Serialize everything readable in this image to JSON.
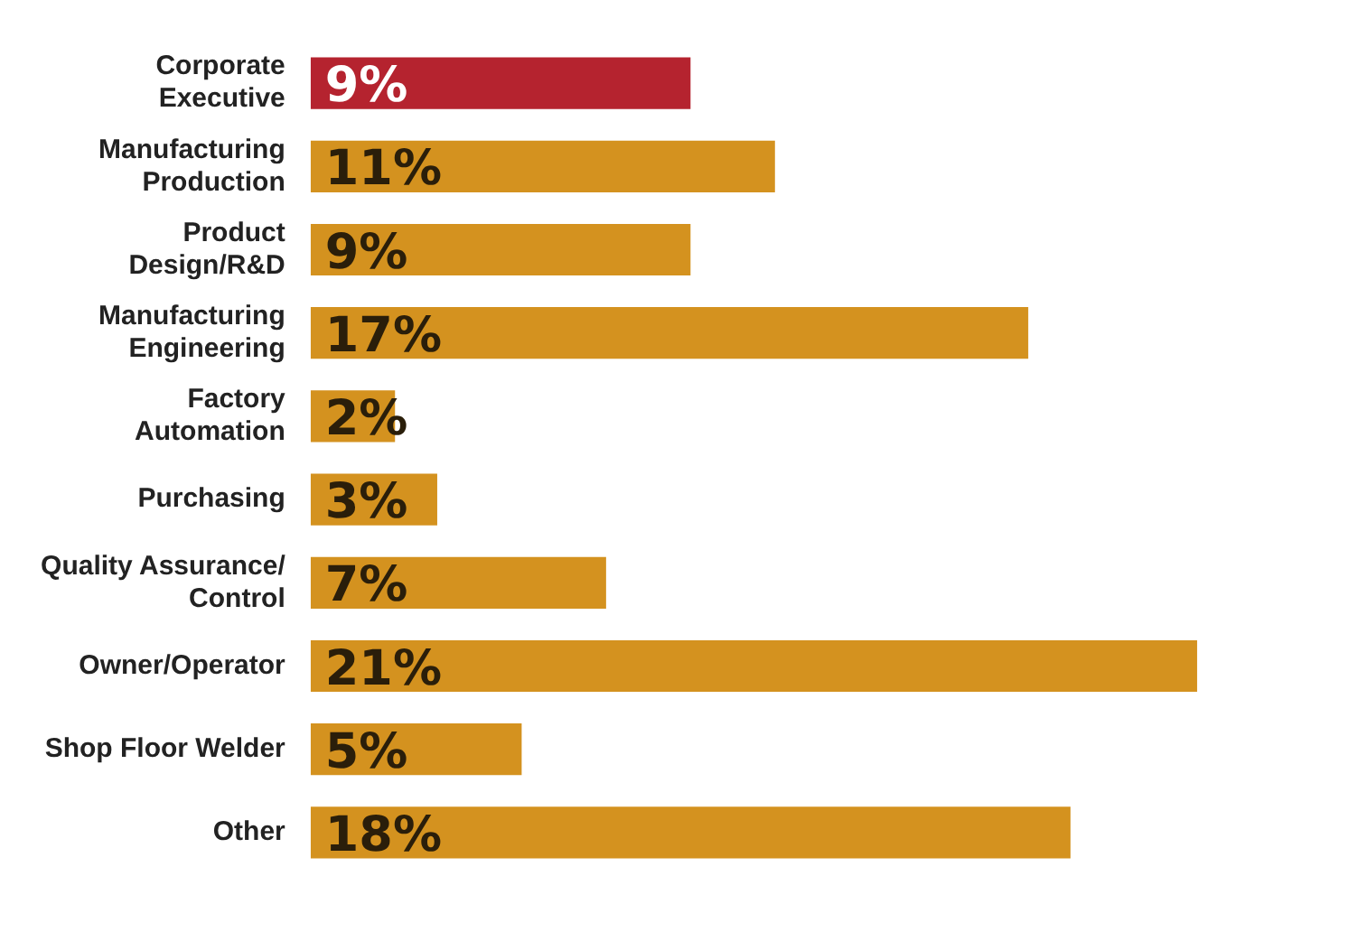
{
  "chart_data": {
    "type": "bar",
    "orientation": "horizontal",
    "categories": [
      "Corporate Executive",
      "Manufacturing Production",
      "Product Design/R&D",
      "Manufacturing Engineering",
      "Factory Automation",
      "Purchasing",
      "Quality Assurance/ Control",
      "Owner/Operator",
      "Shop Floor Welder",
      "Other"
    ],
    "values": [
      9,
      11,
      9,
      17,
      2,
      3,
      7,
      21,
      5,
      18
    ],
    "colors": [
      "#b5232f",
      "#d4921f",
      "#d4921f",
      "#d4921f",
      "#d4921f",
      "#d4921f",
      "#d4921f",
      "#d4921f",
      "#d4921f",
      "#d4921f"
    ],
    "value_labels": [
      "9%",
      "11%",
      "9%",
      "17%",
      "2%",
      "3%",
      "7%",
      "21%",
      "5%",
      "18%"
    ],
    "tick_labels": "y",
    "grid": false,
    "legend": false
  }
}
